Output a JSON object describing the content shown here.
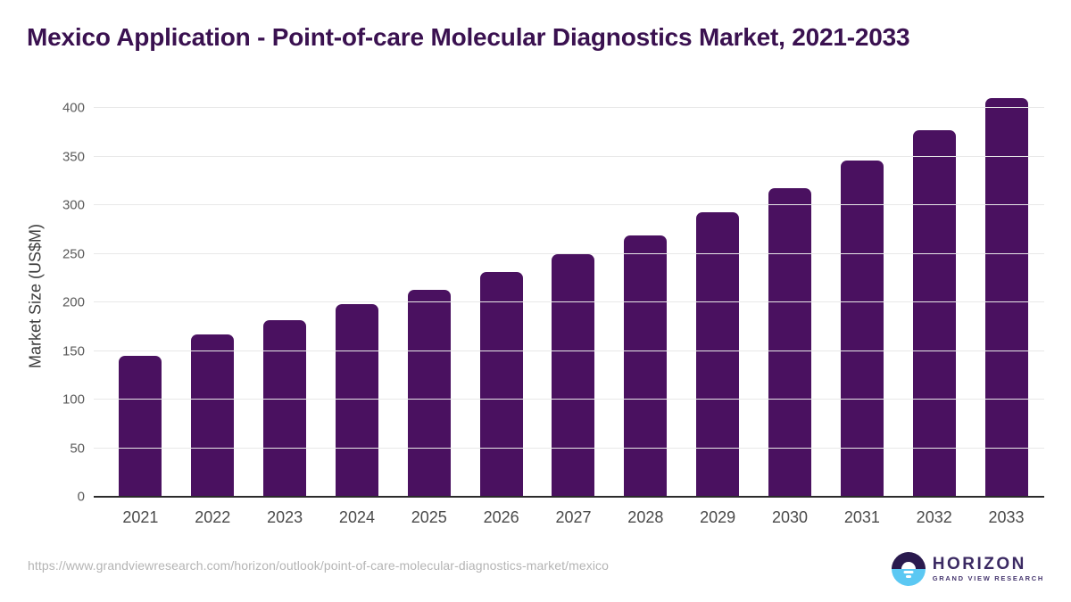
{
  "title": "Mexico Application - Point-of-care Molecular Diagnostics Market, 2021-2033",
  "chart_data": {
    "type": "bar",
    "title": "Mexico Application - Point-of-care Molecular Diagnostics Market, 2021-2033",
    "categories": [
      "2021",
      "2022",
      "2023",
      "2024",
      "2025",
      "2026",
      "2027",
      "2028",
      "2029",
      "2030",
      "2031",
      "2032",
      "2033"
    ],
    "values": [
      145,
      167,
      182,
      198,
      213,
      231,
      250,
      269,
      293,
      318,
      346,
      377,
      410
    ],
    "xlabel": "",
    "ylabel": "Market Size (US$M)",
    "ylim": [
      0,
      413
    ],
    "yticks": [
      0,
      50,
      100,
      150,
      200,
      250,
      300,
      350,
      400
    ],
    "grid": "horizontal-only",
    "legend": "none",
    "bar_color": "#4a1160"
  },
  "colors": {
    "bar": "#4a1160",
    "title_text": "#3a1150",
    "axis_line": "#2b2b2b",
    "gridline": "#e8e8e8",
    "logo_dark": "#2a1a4e",
    "logo_blue": "#5bc8f3"
  },
  "footer": {
    "source_url": "https://www.grandviewresearch.com/horizon/outlook/point-of-care-molecular-diagnostics-market/mexico",
    "logo": {
      "brand": "HORIZON",
      "subbrand": "GRAND VIEW RESEARCH"
    }
  }
}
